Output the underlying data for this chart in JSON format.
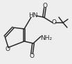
{
  "bg_color": "#eeeeee",
  "line_color": "#2a2a2a",
  "line_width": 1.1,
  "text_color": "#2a2a2a",
  "font_size": 6.0,
  "figsize": [
    1.04,
    0.93
  ],
  "dpi": 100,
  "xlim": [
    0,
    104
  ],
  "ylim": [
    0,
    93
  ]
}
